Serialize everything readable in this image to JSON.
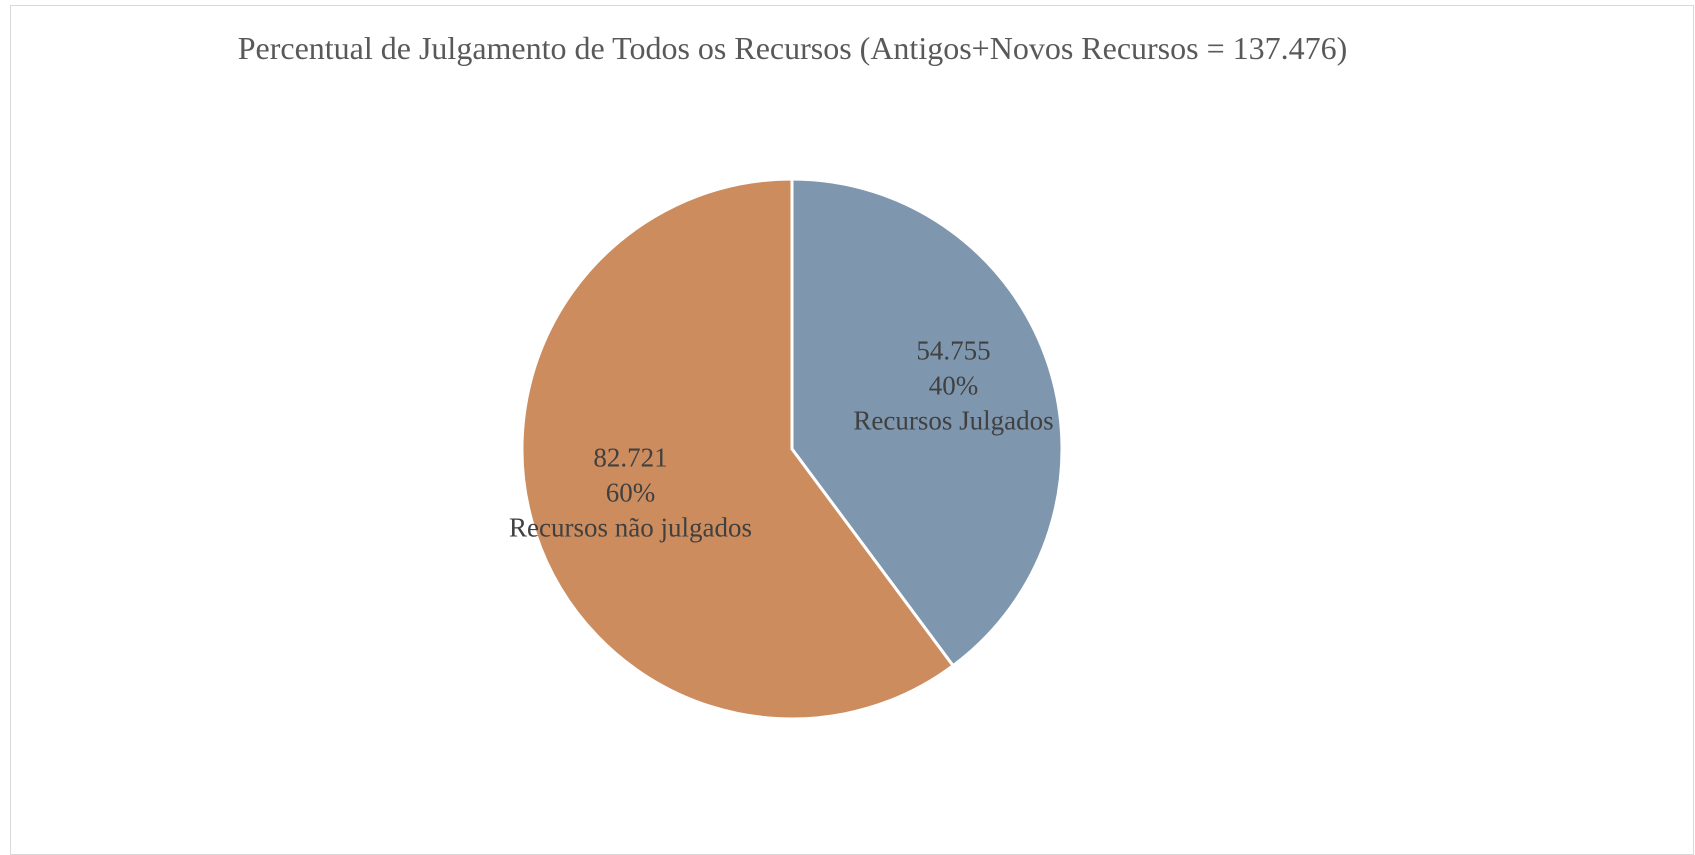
{
  "chart_data": {
    "type": "pie",
    "title": "Percentual de Julgamento de Todos os Recursos (Antigos+Novos Recursos = 137.476)",
    "categories": [
      "Recursos Julgados",
      "Recursos não julgados"
    ],
    "values": [
      54755,
      82721
    ],
    "value_labels": [
      "54.755",
      "82.721"
    ],
    "percent_labels": [
      "40%",
      "60%"
    ],
    "colors": [
      "#7f97ae",
      "#cc8c5e"
    ]
  }
}
